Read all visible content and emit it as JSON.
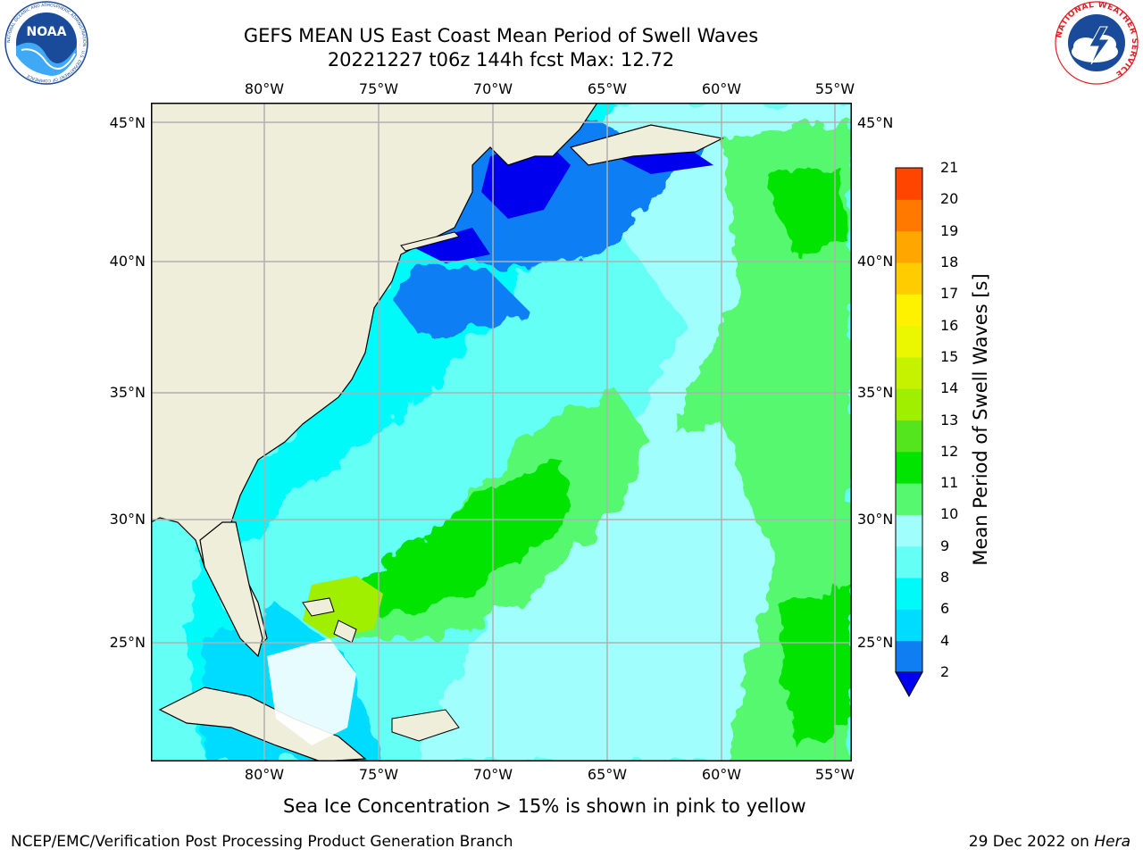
{
  "title": {
    "line1": "GEFS MEAN US East Coast Mean Period of Swell Waves",
    "line2": "20221227 t06z 144h fcst   Max: 12.72"
  },
  "logos": {
    "noaa": {
      "text": "NOAA",
      "ring_text": "NATIONAL OCEANIC AND ATMOSPHERIC ADMINISTRATION · U.S. DEPARTMENT OF COMMERCE",
      "color": "#1a4b9b"
    },
    "nws": {
      "ring_text": "NATIONAL WEATHER SERVICE",
      "color": "#e41f26"
    }
  },
  "map": {
    "lon_ticks": [
      "80°W",
      "75°W",
      "70°W",
      "65°W",
      "60°W",
      "55°W"
    ],
    "lat_ticks": [
      "45°N",
      "40°N",
      "35°N",
      "30°N",
      "25°N"
    ],
    "land_color": "#efeedb",
    "grid_color": "#b0b0b0"
  },
  "colorbar": {
    "label": "Mean Period of Swell Waves [s]",
    "levels": [
      "2",
      "4",
      "6",
      "8",
      "9",
      "10",
      "11",
      "12",
      "13",
      "14",
      "15",
      "16",
      "17",
      "18",
      "19",
      "20",
      "21"
    ],
    "colors": [
      "#0f7ef3",
      "#00dcff",
      "#00fafa",
      "#64fff5",
      "#a0fffc",
      "#55f86e",
      "#00e400",
      "#55e51e",
      "#a0ee00",
      "#c6f200",
      "#eaf700",
      "#fff200",
      "#ffcc00",
      "#ffa600",
      "#ff7800",
      "#ff4500",
      "#ff0000"
    ],
    "under_color": "#0000ee"
  },
  "footnote": "Sea Ice Concentration > 15% is shown in pink to yellow",
  "credit_left": "NCEP/EMC/Verification Post Processing Product Generation Branch",
  "credit_right": {
    "date": "29 Dec 2022 on ",
    "machine": "Hera"
  }
}
